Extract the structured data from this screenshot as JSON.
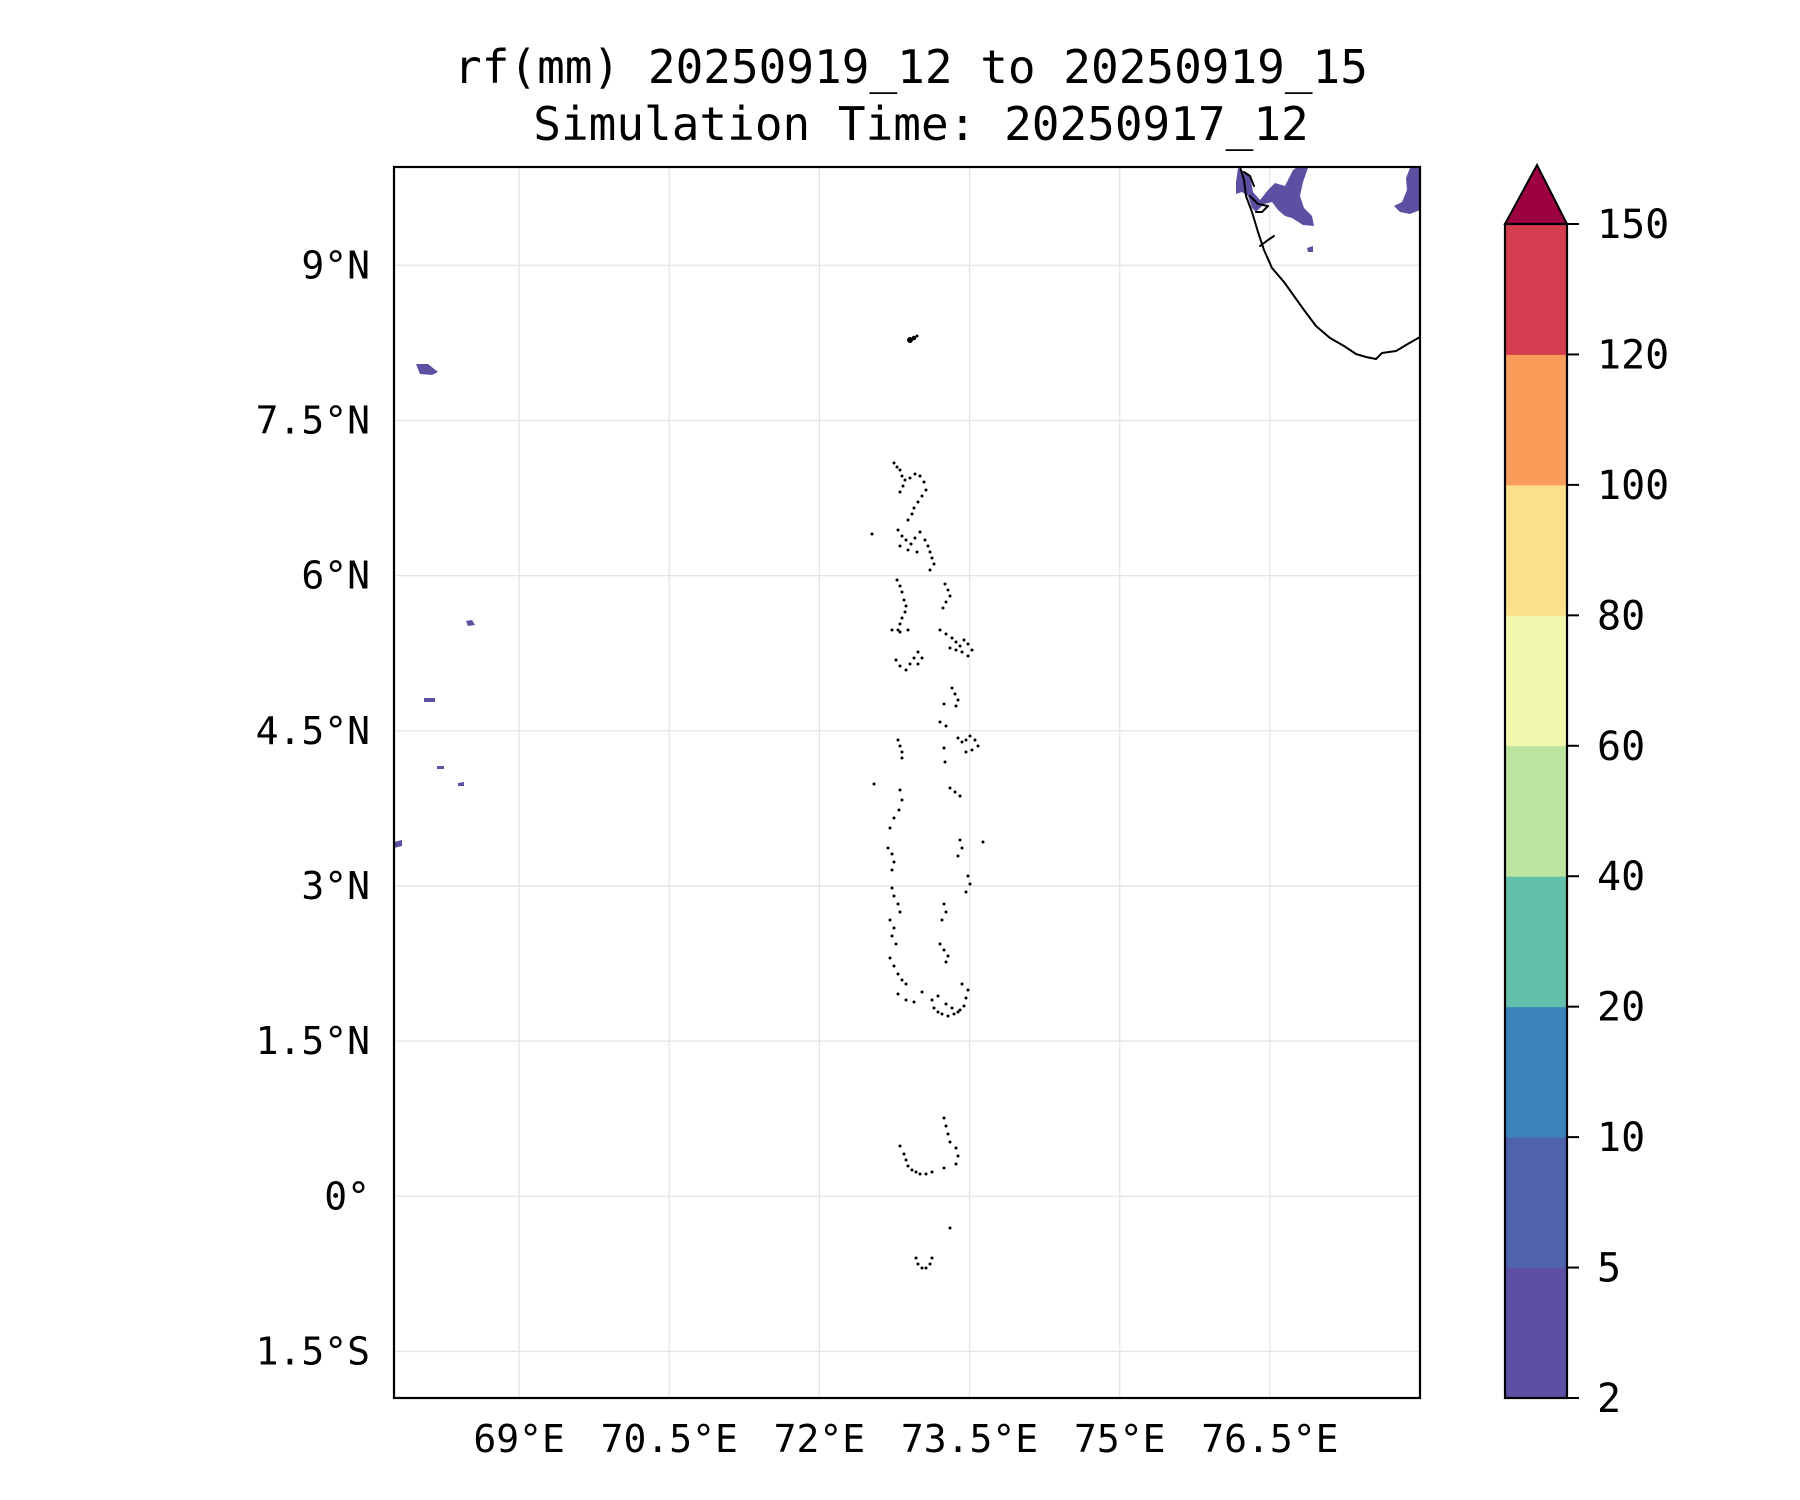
{
  "title": {
    "line1": "rf(mm) 20250919_12 to 20250919_15",
    "line2": "Simulation Time: 20250917_12"
  },
  "map": {
    "lon_range": [
      67.75,
      78.0
    ],
    "lat_range": [
      -1.95,
      9.95
    ],
    "lon_ticks": [
      {
        "value": 69.0,
        "label": "69°E"
      },
      {
        "value": 70.5,
        "label": "70.5°E"
      },
      {
        "value": 72.0,
        "label": "72°E"
      },
      {
        "value": 73.5,
        "label": "73.5°E"
      },
      {
        "value": 75.0,
        "label": "75°E"
      },
      {
        "value": 76.5,
        "label": "76.5°E"
      }
    ],
    "lat_ticks": [
      {
        "value": 9.0,
        "label": "9°N"
      },
      {
        "value": 7.5,
        "label": "7.5°N"
      },
      {
        "value": 6.0,
        "label": "6°N"
      },
      {
        "value": 4.5,
        "label": "4.5°N"
      },
      {
        "value": 3.0,
        "label": "3°N"
      },
      {
        "value": 1.5,
        "label": "1.5°N"
      },
      {
        "value": 0.0,
        "label": "0°"
      },
      {
        "value": -1.5,
        "label": "1.5°S"
      }
    ],
    "gridlines": true,
    "coastline_color": "#000000",
    "rain_color": "#5e4fa2"
  },
  "colorbar": {
    "levels": [
      2,
      5,
      10,
      20,
      40,
      60,
      80,
      100,
      120,
      150
    ],
    "labels": [
      "2",
      "5",
      "10",
      "20",
      "40",
      "60",
      "80",
      "100",
      "120",
      "150"
    ],
    "colors": [
      "#5e4fa2",
      "#4e62ad",
      "#3a82bb",
      "#64bfaa",
      "#bde3a0",
      "#f2f9ae",
      "#fde08c",
      "#f99c5a",
      "#d43d50"
    ],
    "extend_color": "#9e0142",
    "extend": "max"
  }
}
